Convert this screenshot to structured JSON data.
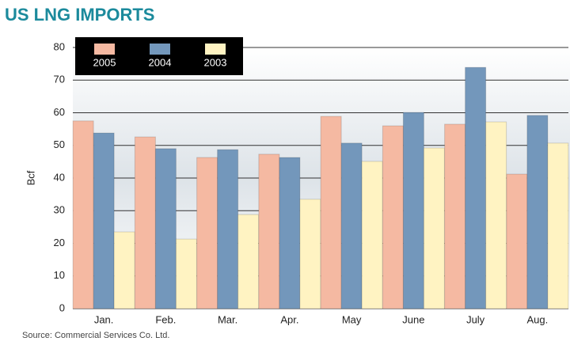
{
  "chart_data": {
    "type": "bar",
    "title": "US LNG IMPORTS",
    "y_label": "Bcf",
    "source": "Source: Commercial Services Co. Ltd.",
    "categories": [
      "Jan.",
      "Feb.",
      "Mar.",
      "Apr.",
      "May",
      "June",
      "July",
      "Aug."
    ],
    "series": [
      {
        "name": "2005",
        "color": "#f5b9a2",
        "values": [
          57.5,
          52.6,
          46.3,
          47.3,
          58.9,
          56,
          56.5,
          41.2
        ]
      },
      {
        "name": "2004",
        "color": "#7397bb",
        "values": [
          53.8,
          49,
          48.7,
          46.3,
          50.7,
          60.1,
          73.9,
          59.2
        ]
      },
      {
        "name": "2003",
        "color": "#fff3c2",
        "values": [
          23.5,
          21.3,
          28.8,
          33.5,
          45.1,
          49.2,
          57.2,
          50.7
        ]
      }
    ],
    "ylim": [
      0,
      80
    ],
    "yticks": [
      0,
      10,
      20,
      30,
      40,
      50,
      60,
      70,
      80
    ],
    "grid": true,
    "legend": "upper left"
  }
}
